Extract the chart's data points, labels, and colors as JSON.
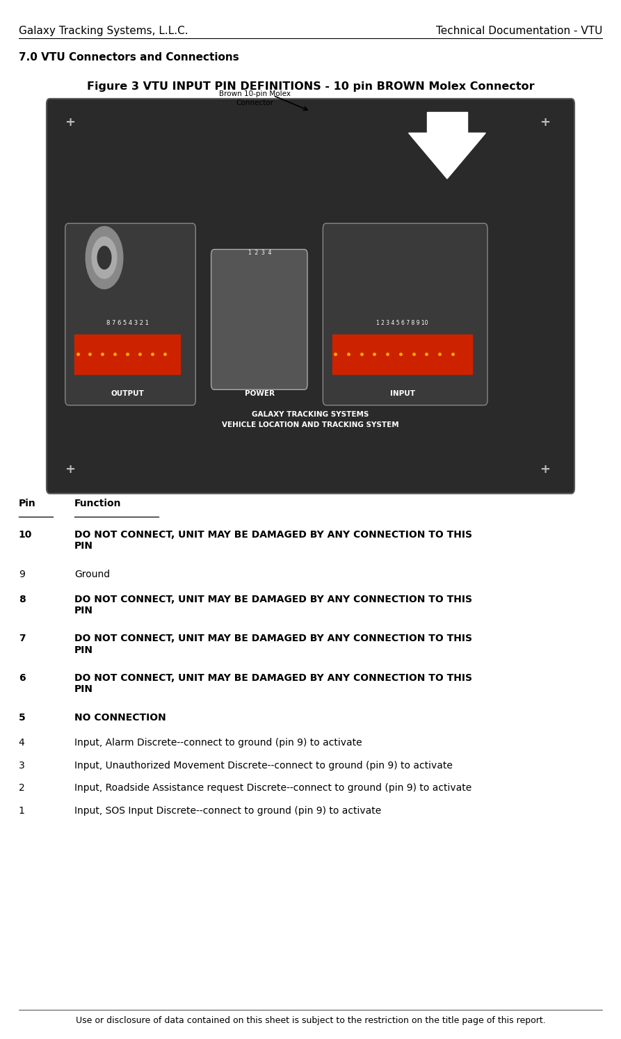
{
  "header_left": "Galaxy Tracking Systems, L.L.C.",
  "header_right": "Technical Documentation - VTU",
  "section_title": "7.0 VTU Connectors and Connections",
  "figure_title": "Figure 3 VTU INPUT PIN DEFINITIONS - 10 pin BROWN Molex Connector",
  "pin_header_pin": "Pin",
  "pin_header_function": "Function",
  "pins": [
    {
      "pin": "10",
      "function": "DO NOT CONNECT, UNIT MAY BE DAMAGED BY ANY CONNECTION TO THIS\nPIN",
      "bold": true
    },
    {
      "pin": "9",
      "function": "Ground",
      "bold": false
    },
    {
      "pin": "8",
      "function": "DO NOT CONNECT, UNIT MAY BE DAMAGED BY ANY CONNECTION TO THIS\nPIN",
      "bold": true
    },
    {
      "pin": "7",
      "function": "DO NOT CONNECT, UNIT MAY BE DAMAGED BY ANY CONNECTION TO THIS\nPIN",
      "bold": true
    },
    {
      "pin": "6",
      "function": "DO NOT CONNECT, UNIT MAY BE DAMAGED BY ANY CONNECTION TO THIS\nPIN",
      "bold": true
    },
    {
      "pin": "5",
      "function": "NO CONNECTION",
      "bold": true
    },
    {
      "pin": "4",
      "function": "Input, Alarm Discrete--connect to ground (pin 9) to activate",
      "bold": false
    },
    {
      "pin": "3",
      "function": "Input, Unauthorized Movement Discrete--connect to ground (pin 9) to activate",
      "bold": false
    },
    {
      "pin": "2",
      "function": "Input, Roadside Assistance request Discrete--connect to ground (pin 9) to activate",
      "bold": false
    },
    {
      "pin": "1",
      "function": "Input, SOS Input Discrete--connect to ground (pin 9) to activate",
      "bold": false
    }
  ],
  "footer_text": "Use or disclosure of data contained on this sheet is subject to the restriction on the title page of this report.",
  "bg_color": "#ffffff",
  "text_color": "#000000",
  "header_fontsize": 11,
  "section_fontsize": 11,
  "figure_title_fontsize": 11,
  "pin_fontsize": 10,
  "footer_fontsize": 9,
  "pin_spacings": {
    "10": 0.038,
    "9": 0.024,
    "8": 0.038,
    "7": 0.038,
    "6": 0.038,
    "5": 0.024,
    "4": 0.022,
    "3": 0.022,
    "2": 0.022,
    "1": 0.022
  }
}
